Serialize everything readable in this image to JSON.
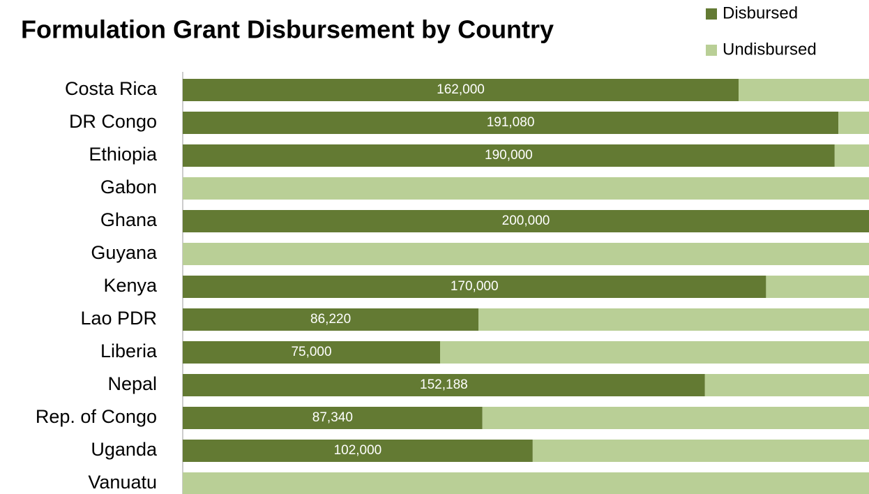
{
  "chart_data": {
    "type": "stacked_bar_horizontal",
    "title": "Formulation Grant Disbursement by Country",
    "categories": [
      "Costa Rica",
      "DR Congo",
      "Ethiopia",
      "Gabon",
      "Ghana",
      "Guyana",
      "Kenya",
      "Lao PDR",
      "Liberia",
      "Nepal",
      "Rep. of Congo",
      "Uganda",
      "Vanuatu"
    ],
    "series": [
      {
        "name": "Disbursed",
        "color": "#637a33",
        "values": [
          162000,
          191080,
          190000,
          0,
          200000,
          0,
          170000,
          86220,
          75000,
          152188,
          87340,
          102000,
          0
        ],
        "value_labels": [
          "162,000",
          "191,080",
          "190,000",
          "-",
          "200,000",
          "-",
          "170,000",
          "86,220",
          "75,000",
          "152,188",
          "87,340",
          "102,000",
          "-"
        ]
      },
      {
        "name": "Undisbursed",
        "color": "#b9cf96",
        "values": [
          38000,
          8920,
          10000,
          200000,
          0,
          200000,
          30000,
          113780,
          125000,
          47812,
          112660,
          98000,
          200000
        ]
      }
    ],
    "xlim": [
      0,
      200000
    ],
    "legend": "top-right"
  }
}
